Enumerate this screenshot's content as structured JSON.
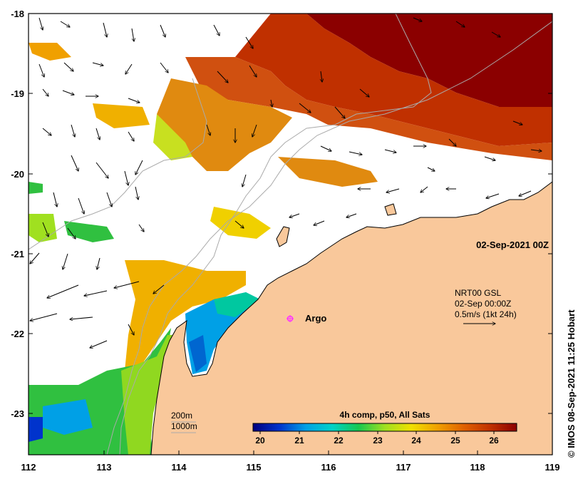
{
  "map": {
    "lon_ticks": [
      "112",
      "113",
      "114",
      "115",
      "116",
      "117",
      "118",
      "119"
    ],
    "lat_ticks": [
      "-18",
      "-19",
      "-20",
      "-21",
      "-22",
      "-23"
    ],
    "date_label": "02-Sep-2021 00Z",
    "product": {
      "line1": "NRT00 GSL",
      "line2": "02-Sep 00:00Z",
      "line3": "0.5m/s (1kt 24h)"
    },
    "argo_label": "Argo",
    "isobath_labels": [
      "200m",
      "1000m"
    ],
    "colorbar": {
      "title": "4h comp, p50, All Sats",
      "ticks": [
        "20",
        "21",
        "22",
        "23",
        "24",
        "25",
        "26"
      ],
      "colors": [
        "#00007f",
        "#0033cc",
        "#00a0e6",
        "#00d2c8",
        "#18c850",
        "#a0e020",
        "#f0e000",
        "#f0a000",
        "#e06000",
        "#c03000",
        "#8b0000"
      ]
    },
    "credit": "© IMOS 08-Sep-2021 11:25 Hobart",
    "colors": {
      "land": "#f9c89b",
      "no_data": "#ffffff",
      "coast": "#000000",
      "isobath": "#aaaaaa",
      "argo": "#ff33ff"
    }
  }
}
